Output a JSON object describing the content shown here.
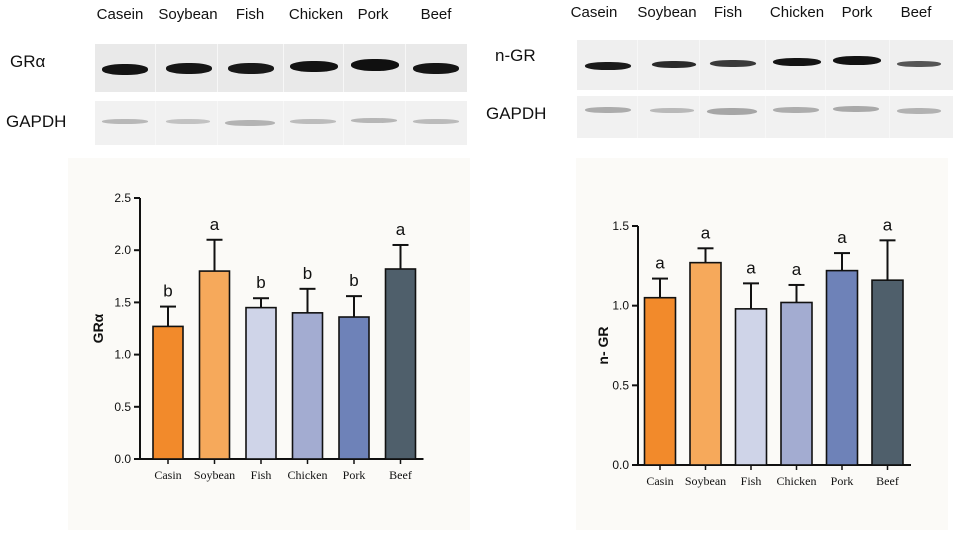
{
  "blots": {
    "left": {
      "lanes": [
        "Casein",
        "Soybean",
        "Fish",
        "Chicken",
        "Pork",
        "Beef"
      ],
      "target_label": "GRα",
      "control_label": "GAPDH"
    },
    "right": {
      "lanes": [
        "Casein",
        "Soybean",
        "Fish",
        "Chicken",
        "Pork",
        "Beef"
      ],
      "target_label": "n-GR",
      "control_label": "GAPDH"
    }
  },
  "colors": [
    "#f28a2b",
    "#f6a95b",
    "#cfd4e8",
    "#a3acd1",
    "#6e82b8",
    "#4f5f6b"
  ],
  "chart_data": [
    {
      "type": "bar",
      "categories": [
        "Casin",
        "Soybean",
        "Fish",
        "Chicken",
        "Pork",
        "Beef"
      ],
      "values": [
        1.27,
        1.8,
        1.45,
        1.4,
        1.36,
        1.82
      ],
      "errors": [
        0.19,
        0.3,
        0.09,
        0.23,
        0.2,
        0.23
      ],
      "significance": [
        "b",
        "a",
        "b",
        "b",
        "b",
        "a"
      ],
      "ylabel": "GRα",
      "ylim": [
        0,
        2.5
      ],
      "yticks": [
        "0.0",
        "0.5",
        "1.0",
        "1.5",
        "2.0",
        "2.5"
      ]
    },
    {
      "type": "bar",
      "categories": [
        "Casin",
        "Soybean",
        "Fish",
        "Chicken",
        "Pork",
        "Beef"
      ],
      "values": [
        1.05,
        1.27,
        0.98,
        1.02,
        1.22,
        1.16
      ],
      "errors": [
        0.12,
        0.09,
        0.16,
        0.11,
        0.11,
        0.25
      ],
      "significance": [
        "a",
        "a",
        "a",
        "a",
        "a",
        "a"
      ],
      "ylabel": "n- GR",
      "ylim": [
        0,
        1.5
      ],
      "yticks": [
        "0.0",
        "0.5",
        "1.0",
        "1.5"
      ]
    }
  ]
}
